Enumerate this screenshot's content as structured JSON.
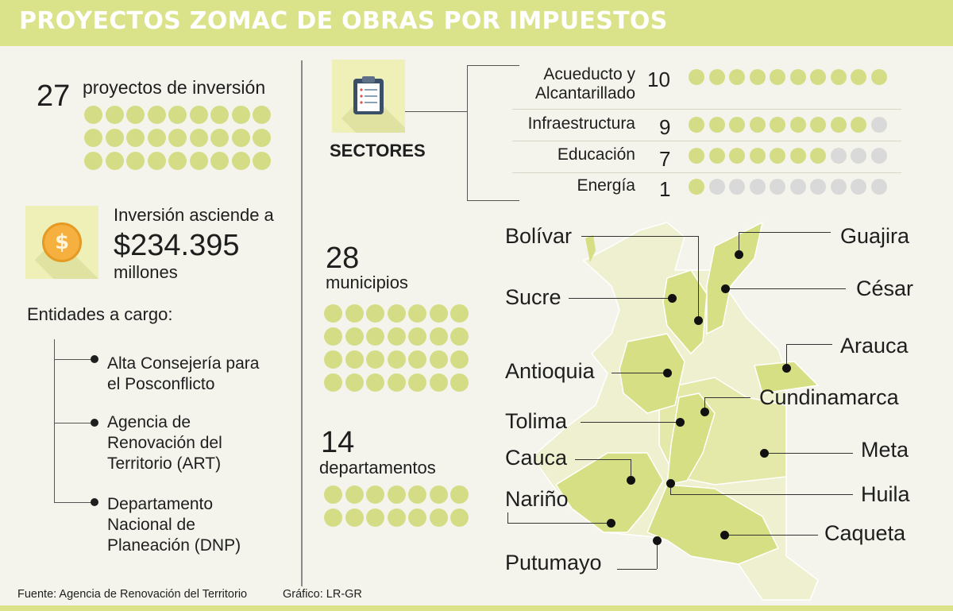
{
  "header": {
    "title": "PROYECTOS ZOMAC DE OBRAS POR IMPUESTOS"
  },
  "projects": {
    "count": "27",
    "label": "proyectos de inversión",
    "total_dots": 27
  },
  "investment": {
    "line1": "Inversión asciende a",
    "amount": "$234.395",
    "unit": "millones",
    "icon": "dollar-coin-icon",
    "coin_symbol": "$"
  },
  "entities": {
    "title": "Entidades  a cargo:",
    "items": [
      {
        "line1": "Alta Consejería para",
        "line2": "el Posconflicto"
      },
      {
        "line1": "Agencia de",
        "line2": "Renovación del",
        "line3": "Territorio (ART)"
      },
      {
        "line1": "Departamento",
        "line2": "Nacional de",
        "line3": "Planeación (DNP)"
      }
    ]
  },
  "sectors": {
    "title": "SECTORES",
    "icon": "clipboard-icon",
    "max": 10,
    "items": [
      {
        "name_line1": "Acueducto y",
        "name_line2": "Alcantarillado",
        "value": 10
      },
      {
        "name_line1": "Infraestructura",
        "value": 9
      },
      {
        "name_line1": "Educación",
        "value": 7
      },
      {
        "name_line1": "Energía",
        "value": 1
      }
    ]
  },
  "municipalities": {
    "count": "28",
    "label": "municipios",
    "total_dots": 28
  },
  "departments": {
    "count": "14",
    "label": "departamentos",
    "total_dots": 14
  },
  "map": {
    "labels": {
      "bolivar": "Bolívar",
      "guajira": "Guajira",
      "sucre": "Sucre",
      "cesar": "César",
      "arauca": "Arauca",
      "antioquia": "Antioquia",
      "cundinamarca": "Cundinamarca",
      "tolima": "Tolima",
      "meta": "Meta",
      "cauca": "Cauca",
      "huila": "Huila",
      "narino": "Nariño",
      "caqueta": "Caqueta",
      "putumayo": "Putumayo"
    }
  },
  "footer": {
    "source": "Fuente: Agencia de Renovación del Territorio",
    "credit": "Gráfico: LR-GR"
  },
  "colors": {
    "accent": "#dae28a",
    "dot_on": "#d4dd85",
    "dot_off": "#d9d9d9",
    "map_dark": "#d6df83",
    "map_mid": "#e4e9a9",
    "map_light": "#eef0cf",
    "coin": "#f5b040"
  }
}
